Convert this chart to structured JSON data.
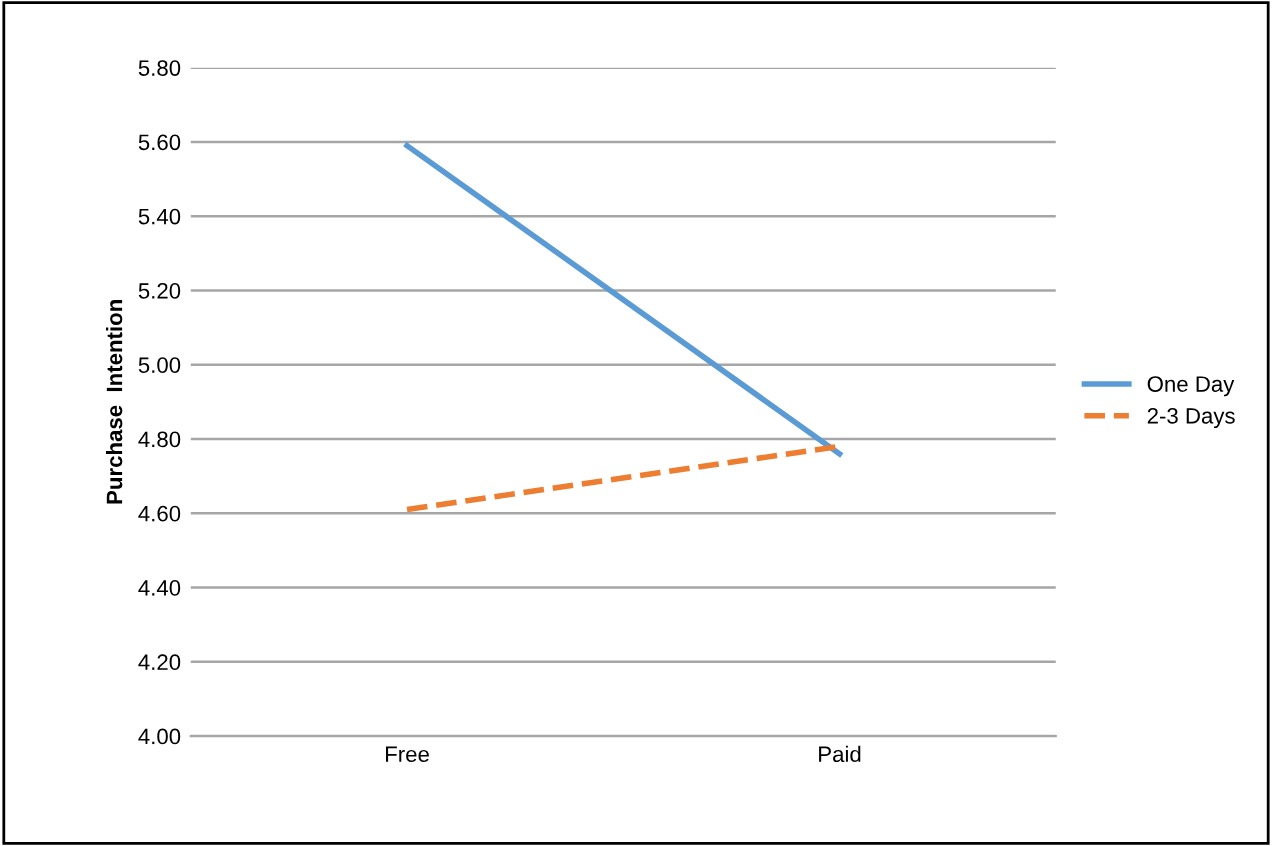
{
  "chart_data": {
    "type": "line",
    "ylabel": "Purchase  Intention",
    "categories": [
      "Free",
      "Paid"
    ],
    "series": [
      {
        "name": "One Day",
        "color": "#5b9bd5",
        "values": [
          5.59,
          4.76
        ],
        "line_style": "solid"
      },
      {
        "name": "2-3 Days",
        "color": "#ed7d31",
        "values": [
          4.61,
          4.78
        ],
        "line_style": "dashed"
      }
    ],
    "ylim": [
      4.0,
      5.8
    ],
    "yticks": [
      {
        "value": 4.0,
        "label": "4.00"
      },
      {
        "value": 4.2,
        "label": "4.20"
      },
      {
        "value": 4.4,
        "label": "4.40"
      },
      {
        "value": 4.6,
        "label": "4.60"
      },
      {
        "value": 4.8,
        "label": "4.80"
      },
      {
        "value": 5.0,
        "label": "5.00"
      },
      {
        "value": 5.2,
        "label": "5.20"
      },
      {
        "value": 5.4,
        "label": "5.40"
      },
      {
        "value": 5.6,
        "label": "5.60"
      },
      {
        "value": 5.8,
        "label": "5.80"
      }
    ],
    "grid": "y",
    "legend": "right",
    "marker": "none"
  }
}
